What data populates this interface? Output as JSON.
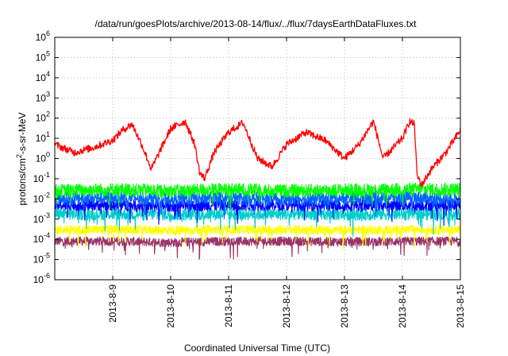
{
  "chart_data": {
    "type": "line",
    "title": "/data/run/goesPlots/archive/2013-08-14/flux/../flux/7daysEarthDataFluxes.txt",
    "xlabel": "Coordinated Universal Time (UTC)",
    "ylabel": "protons/cm2-s-sr-MeV",
    "ylabel_base": "protons/cm",
    "ylabel_sup": "2",
    "ylabel_rest": "-s-sr-MeV",
    "x_ticks": [
      "2013-8-9",
      "2013-8-10",
      "2013-8-11",
      "2013-8-12",
      "2013-8-13",
      "2013-8-14",
      "2013-8-15"
    ],
    "xlim": [
      "2013-8-8",
      "2013-8-15"
    ],
    "y_scale": "log",
    "ylim": [
      1e-06,
      1000000.0
    ],
    "y_ticks": [
      {
        "base": "10",
        "exp": "-6"
      },
      {
        "base": "10",
        "exp": "-5"
      },
      {
        "base": "10",
        "exp": "-4"
      },
      {
        "base": "10",
        "exp": "-3"
      },
      {
        "base": "10",
        "exp": "-2"
      },
      {
        "base": "10",
        "exp": "-1"
      },
      {
        "base": "10",
        "exp": "0"
      },
      {
        "base": "10",
        "exp": "1"
      },
      {
        "base": "10",
        "exp": "2"
      },
      {
        "base": "10",
        "exp": "3"
      },
      {
        "base": "10",
        "exp": "4"
      },
      {
        "base": "10",
        "exp": "5"
      },
      {
        "base": "10",
        "exp": "6"
      }
    ],
    "grid": true,
    "series": [
      {
        "color": "#ff0000",
        "x": [
          "2013-8-8 00:00",
          "2013-8-8 08:00",
          "2013-8-8 16:00",
          "2013-8-9 00:00",
          "2013-8-9 04:00",
          "2013-8-9 08:00",
          "2013-8-9 12:00",
          "2013-8-9 16:00",
          "2013-8-10 00:00",
          "2013-8-10 06:00",
          "2013-8-10 10:00",
          "2013-8-10 12:00",
          "2013-8-10 14:00",
          "2013-8-10 18:00",
          "2013-8-11 00:00",
          "2013-8-11 06:00",
          "2013-8-11 12:00",
          "2013-8-11 18:00",
          "2013-8-12 00:00",
          "2013-8-12 08:00",
          "2013-8-12 16:00",
          "2013-8-13 00:00",
          "2013-8-13 06:00",
          "2013-8-13 12:00",
          "2013-8-13 16:00",
          "2013-8-14 00:00",
          "2013-8-14 03:00",
          "2013-8-14 05:00",
          "2013-8-14 06:00",
          "2013-8-14 08:00",
          "2013-8-14 12:00",
          "2013-8-14 18:00",
          "2013-8-15 00:00"
        ],
        "y": [
          5,
          2,
          3.5,
          8,
          25,
          50,
          5,
          0.3,
          30,
          70,
          5,
          0.2,
          0.1,
          2,
          20,
          60,
          1,
          0.4,
          5,
          20,
          8,
          1,
          5,
          70,
          1,
          10,
          70,
          50,
          0.15,
          0.05,
          0.3,
          2,
          25
        ]
      },
      {
        "color": "#00ff00",
        "x": [
          "2013-8-8 00:00",
          "2013-8-9 00:00",
          "2013-8-10 00:00",
          "2013-8-11 00:00",
          "2013-8-12 00:00",
          "2013-8-13 00:00",
          "2013-8-14 00:00",
          "2013-8-15 00:00"
        ],
        "y": [
          0.025,
          0.03,
          0.025,
          0.03,
          0.025,
          0.028,
          0.03,
          0.03
        ]
      },
      {
        "color": "#0066ff",
        "x": [
          "2013-8-8 00:00",
          "2013-8-9 00:00",
          "2013-8-10 00:00",
          "2013-8-11 00:00",
          "2013-8-12 00:00",
          "2013-8-13 00:00",
          "2013-8-14 00:00",
          "2013-8-15 00:00"
        ],
        "y": [
          0.01,
          0.012,
          0.01,
          0.011,
          0.01,
          0.011,
          0.012,
          0.01
        ]
      },
      {
        "color": "#0000ff",
        "x": [
          "2013-8-8 00:00",
          "2013-8-9 00:00",
          "2013-8-10 00:00",
          "2013-8-11 00:00",
          "2013-8-12 00:00",
          "2013-8-13 00:00",
          "2013-8-14 00:00",
          "2013-8-15 00:00"
        ],
        "y": [
          0.005,
          0.005,
          0.0045,
          0.005,
          0.005,
          0.0048,
          0.005,
          0.005
        ]
      },
      {
        "color": "#00cccc",
        "x": [
          "2013-8-8 00:00",
          "2013-8-9 00:00",
          "2013-8-10 00:00",
          "2013-8-11 00:00",
          "2013-8-12 00:00",
          "2013-8-13 00:00",
          "2013-8-14 00:00",
          "2013-8-15 00:00"
        ],
        "y": [
          0.0018,
          0.0018,
          0.0017,
          0.0018,
          0.0018,
          0.0017,
          0.0018,
          0.0018
        ]
      },
      {
        "color": "#ffff00",
        "x": [
          "2013-8-8 00:00",
          "2013-8-9 00:00",
          "2013-8-10 00:00",
          "2013-8-11 00:00",
          "2013-8-12 00:00",
          "2013-8-13 00:00",
          "2013-8-14 00:00",
          "2013-8-15 00:00"
        ],
        "y": [
          0.0003,
          0.0003,
          0.00028,
          0.0003,
          0.0003,
          0.00029,
          0.0003,
          0.0003
        ]
      },
      {
        "color": "#993366",
        "x": [
          "2013-8-8 00:00",
          "2013-8-9 00:00",
          "2013-8-10 00:00",
          "2013-8-11 00:00",
          "2013-8-12 00:00",
          "2013-8-13 00:00",
          "2013-8-14 00:00",
          "2013-8-15 00:00"
        ],
        "y": [
          8e-05,
          8e-05,
          7e-05,
          8e-05,
          8e-05,
          7.5e-05,
          8e-05,
          8e-05
        ]
      }
    ]
  }
}
